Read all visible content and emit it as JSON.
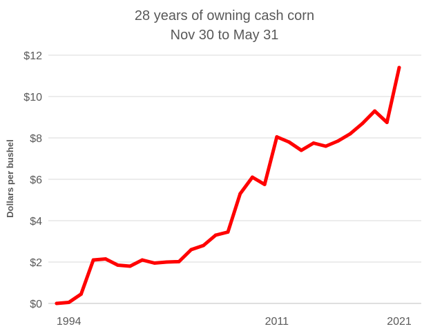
{
  "chart_data": {
    "type": "line",
    "title": [
      "28 years of owning cash corn",
      "Nov 30 to May 31"
    ],
    "ylabel": "Dollars per bushel",
    "xlabel": "",
    "x": [
      1993,
      1994,
      1995,
      1996,
      1997,
      1998,
      1999,
      2000,
      2001,
      2002,
      2003,
      2004,
      2005,
      2006,
      2007,
      2008,
      2009,
      2010,
      2011,
      2012,
      2013,
      2014,
      2015,
      2016,
      2017,
      2018,
      2019,
      2020,
      2021
    ],
    "x_tick_labels": [
      {
        "x": 1994,
        "label": "1994"
      },
      {
        "x": 2011,
        "label": "2011"
      },
      {
        "x": 2021,
        "label": "2021"
      }
    ],
    "y_tick_labels": [
      {
        "y": 0,
        "label": "$0"
      },
      {
        "y": 2,
        "label": "$2"
      },
      {
        "y": 4,
        "label": "$4"
      },
      {
        "y": 6,
        "label": "$6"
      },
      {
        "y": 8,
        "label": "$8"
      },
      {
        "y": 10,
        "label": "$10"
      },
      {
        "y": 12,
        "label": "$12"
      }
    ],
    "ylim": [
      0,
      12
    ],
    "xlim": [
      1993,
      2021
    ],
    "grid": "horizontal",
    "series": [
      {
        "color": "#ff0000",
        "values": [
          0.0,
          0.05,
          0.45,
          2.1,
          2.15,
          1.85,
          1.8,
          2.1,
          1.95,
          2.0,
          2.02,
          2.6,
          2.8,
          3.3,
          3.45,
          5.3,
          6.1,
          5.75,
          8.05,
          7.8,
          7.4,
          7.75,
          7.6,
          7.85,
          8.2,
          8.7,
          9.3,
          8.75,
          11.4
        ]
      }
    ]
  }
}
